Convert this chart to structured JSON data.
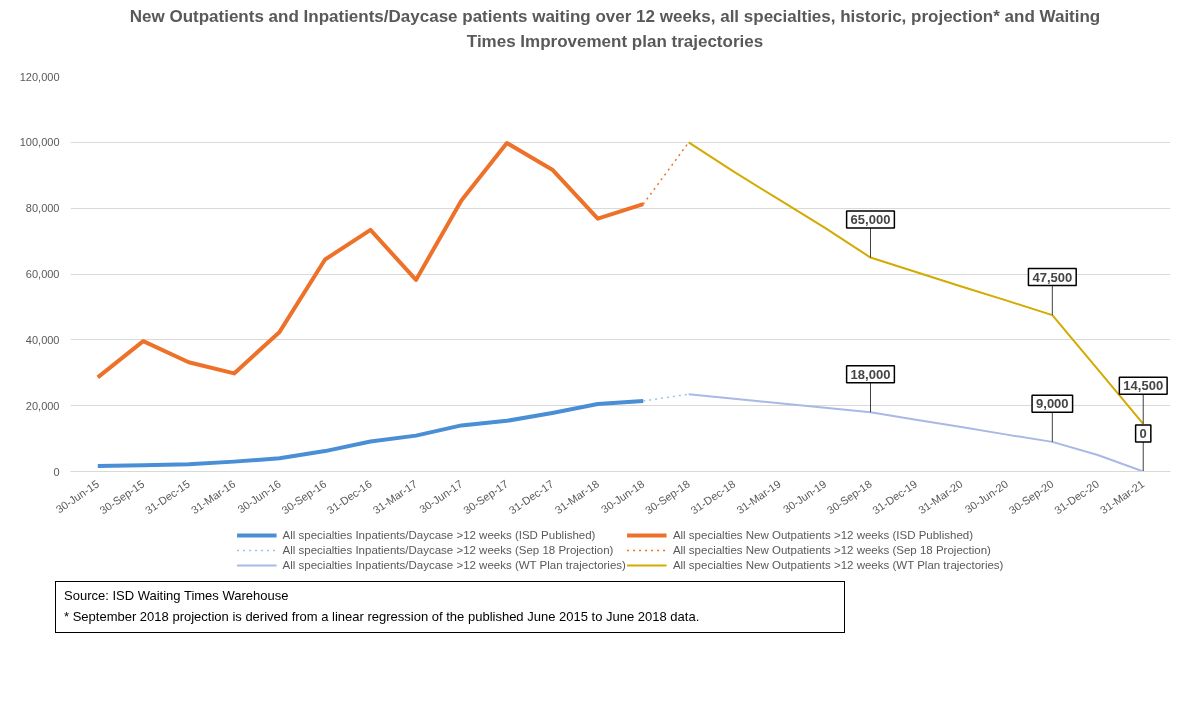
{
  "chart_data": {
    "type": "line",
    "title": "New Outpatients and Inpatients/Daycase patients waiting over 12 weeks, all specialties, historic, projection* and Waiting Times Improvement plan trajectories",
    "categories": [
      "30-Jun-15",
      "30-Sep-15",
      "31-Dec-15",
      "31-Mar-16",
      "30-Jun-16",
      "30-Sep-16",
      "31-Dec-16",
      "31-Mar-17",
      "30-Jun-17",
      "30-Sep-17",
      "31-Dec-17",
      "31-Mar-18",
      "30-Jun-18",
      "30-Sep-18",
      "31-Dec-18",
      "31-Mar-19",
      "30-Jun-19",
      "30-Sep-18",
      "31-Dec-19",
      "31-Mar-20",
      "30-Jun-20",
      "30-Sep-20",
      "31-Dec-20",
      "31-Mar-21"
    ],
    "series": [
      {
        "name": "All specialties Inpatients/Daycase >12 weeks (ISD Published)",
        "color": "#4a8fd6",
        "line_style": "solid",
        "values": [
          1700,
          1900,
          2200,
          3000,
          4000,
          6200,
          9100,
          10900,
          14000,
          15400,
          17800,
          20500,
          21400,
          null,
          null,
          null,
          null,
          null,
          null,
          null,
          null,
          null,
          null,
          null
        ]
      },
      {
        "name": "All specialties New Outpatients >12 weeks (ISD Published)",
        "color": "#ee7129",
        "line_style": "solid",
        "values": [
          28600,
          39600,
          33200,
          29800,
          42400,
          64400,
          73400,
          58200,
          82300,
          99800,
          91700,
          76800,
          81200,
          null,
          null,
          null,
          null,
          null,
          null,
          null,
          null,
          null,
          null,
          null
        ]
      },
      {
        "name": "All specialties Inpatients/Daycase >12 weeks (Sep 18 Projection)",
        "color": "#9dc3e6",
        "line_style": "dotted",
        "values": [
          null,
          null,
          null,
          null,
          null,
          null,
          null,
          null,
          null,
          null,
          null,
          null,
          21400,
          23500,
          null,
          null,
          null,
          null,
          null,
          null,
          null,
          null,
          null,
          null
        ]
      },
      {
        "name": "All specialties New Outpatients >12 weeks (Sep 18 Projection)",
        "color": "#ee7129",
        "line_style": "dotted",
        "values": [
          null,
          null,
          null,
          null,
          null,
          null,
          null,
          null,
          null,
          null,
          null,
          null,
          81200,
          100000,
          null,
          null,
          null,
          null,
          null,
          null,
          null,
          null,
          null,
          null
        ]
      },
      {
        "name": "All specialties Inpatients/Daycase >12 weeks (WT Plan trajectories)",
        "color": "#a9b9e6",
        "line_style": "solid",
        "values": [
          null,
          null,
          null,
          null,
          null,
          null,
          null,
          null,
          null,
          null,
          null,
          null,
          null,
          23500,
          22100,
          20700,
          19400,
          18000,
          15700,
          13500,
          11200,
          9000,
          5000,
          0
        ],
        "value_labels": [
          null,
          null,
          null,
          null,
          null,
          null,
          null,
          null,
          null,
          null,
          null,
          null,
          null,
          null,
          null,
          null,
          null,
          "18,000",
          null,
          null,
          null,
          "9,000",
          null,
          "0"
        ]
      },
      {
        "name": "All specialties New Outpatients >12 weeks (WT Plan trajectories)",
        "color": "#d4aa00",
        "line_style": "solid",
        "values": [
          null,
          null,
          null,
          null,
          null,
          null,
          null,
          null,
          null,
          null,
          null,
          null,
          null,
          100000,
          91000,
          82500,
          74000,
          65000,
          60600,
          56200,
          51900,
          47500,
          31000,
          14500
        ],
        "value_labels": [
          null,
          null,
          null,
          null,
          null,
          null,
          null,
          null,
          null,
          null,
          null,
          null,
          null,
          null,
          null,
          null,
          null,
          "65,000",
          null,
          null,
          null,
          "47,500",
          null,
          "14,500"
        ]
      }
    ],
    "ylim": [
      0,
      120000
    ],
    "yticks": [
      0,
      {
        "value": 20000,
        "label": "20,000"
      },
      {
        "value": 40000,
        "label": "40,000"
      },
      {
        "value": 60000,
        "label": "60,000"
      },
      {
        "value": 80000,
        "label": "80,000"
      },
      {
        "value": 100000,
        "label": "100,000"
      },
      {
        "value": 120000,
        "label": "120,000"
      }
    ],
    "grid": "y",
    "legend": "bottom",
    "marker": "none",
    "annotations": [
      "Source: ISD Waiting Times Warehouse",
      "* September 2018 projection is derived from a linear regression of the published June 2015 to June 2018 data."
    ]
  }
}
